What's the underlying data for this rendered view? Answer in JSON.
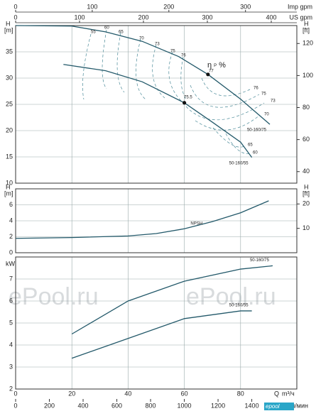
{
  "chart_data": [
    {
      "type": "line",
      "y_label": "H",
      "y_unit": "[m]",
      "y2_label": "H",
      "y2_unit": "[ft]",
      "ylim": [
        10,
        40
      ],
      "yticks": [
        10,
        15,
        20,
        25,
        30,
        35
      ],
      "y2lim": [
        32.8,
        131.2
      ],
      "y2ticks": [
        40,
        60,
        80,
        100,
        120
      ],
      "grid": true,
      "series": [
        {
          "name": "50-160/75",
          "color": "#23596a",
          "x": [
            0,
            20,
            32,
            45,
            58,
            68.4,
            80,
            90.4
          ],
          "values": [
            40,
            39.9,
            38.8,
            37,
            34.1,
            30.7,
            26,
            21.2
          ]
        },
        {
          "name": "50-160/55",
          "color": "#23596a",
          "x": [
            17,
            32,
            45,
            60,
            70,
            80,
            84
          ],
          "values": [
            32.6,
            31.4,
            29.3,
            25.3,
            21.6,
            17.8,
            14.9
          ]
        }
      ],
      "points": {
        "x": [
          68.4,
          60
        ],
        "values": [
          30.7,
          25.3
        ]
      },
      "annotation": "η",
      "annotation_sub": "P",
      "annotation_unit": "%",
      "efficiency_labels": [
        "55",
        "60",
        "65",
        "70",
        "73",
        "75",
        "76",
        "77",
        "76",
        "75",
        "73",
        "70",
        "65",
        "60",
        "75.5"
      ]
    },
    {
      "type": "line",
      "y_label": "H",
      "y_unit": "[m]",
      "y2_label": "H",
      "y2_unit": "[ft]",
      "ylim": [
        0,
        8
      ],
      "yticks": [
        0,
        2,
        4,
        6
      ],
      "y2lim": [
        0,
        26.2
      ],
      "y2ticks": [
        10,
        20
      ],
      "grid": true,
      "series": [
        {
          "name": "NPSH",
          "color": "#23596a",
          "x": [
            0,
            20,
            40,
            50,
            60,
            70,
            80,
            90
          ],
          "values": [
            1.8,
            1.9,
            2.1,
            2.4,
            3,
            3.9,
            5,
            6.5
          ]
        }
      ]
    },
    {
      "type": "line",
      "y_label": "kW",
      "ylim": [
        2,
        8
      ],
      "yticks": [
        2,
        3,
        4,
        5,
        6,
        7
      ],
      "grid": true,
      "series": [
        {
          "name": "50-160/75",
          "color": "#23596a",
          "x": [
            20,
            40,
            60,
            80,
            91.4
          ],
          "values": [
            4.5,
            6,
            6.9,
            7.45,
            7.6
          ]
        },
        {
          "name": "50-160/55",
          "color": "#23596a",
          "x": [
            20,
            40,
            60,
            80,
            84
          ],
          "values": [
            3.4,
            4.3,
            5.2,
            5.55,
            5.55
          ]
        }
      ],
      "xlim": [
        0,
        100
      ],
      "xticks": [
        0,
        20,
        40,
        60,
        80
      ],
      "x_label": "Q",
      "x_unit": "m³/ч",
      "x2_label": "л/мин",
      "x2lim": [
        0,
        1667
      ],
      "x2ticks": [
        0,
        200,
        400,
        600,
        800,
        1000,
        1200,
        1400
      ]
    }
  ],
  "top_axes": [
    {
      "label": "Imp gpm",
      "xlim": [
        0,
        367
      ],
      "ticks": [
        0,
        100,
        200,
        300
      ]
    },
    {
      "label": "US gpm",
      "xlim": [
        0,
        440
      ],
      "ticks": [
        0,
        100,
        200,
        300,
        400
      ]
    }
  ],
  "watermark": [
    "ePool.ru",
    "ePool.ru"
  ],
  "logo": "epool"
}
